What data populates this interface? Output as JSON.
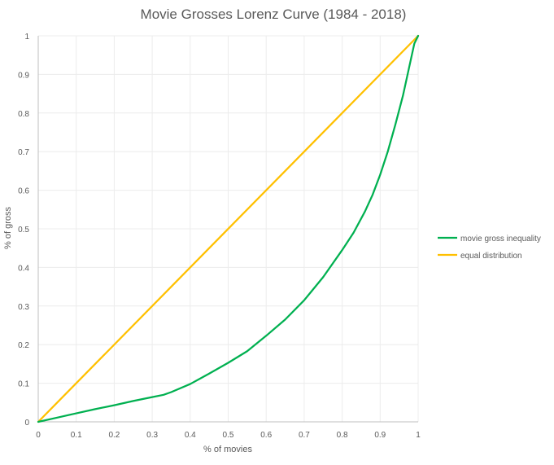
{
  "chart_data": {
    "type": "line",
    "title": "Movie Grosses Lorenz Curve (1984 - 2018)",
    "xlabel": "% of movies",
    "ylabel": "% of gross",
    "xlim": [
      0,
      1
    ],
    "ylim": [
      0,
      1
    ],
    "xticks": [
      "0",
      "0.1",
      "0.2",
      "0.3",
      "0.4",
      "0.5",
      "0.6",
      "0.7",
      "0.8",
      "0.9",
      "1"
    ],
    "yticks": [
      "0",
      "0.1",
      "0.2",
      "0.3",
      "0.4",
      "0.5",
      "0.6",
      "0.7",
      "0.8",
      "0.9",
      "1"
    ],
    "grid": true,
    "legend_position": "right",
    "series": [
      {
        "name": "movie gross inequality",
        "color": "#00b050",
        "x": [
          0,
          0.05,
          0.1,
          0.15,
          0.2,
          0.25,
          0.3,
          0.33,
          0.35,
          0.4,
          0.45,
          0.5,
          0.55,
          0.6,
          0.65,
          0.7,
          0.75,
          0.8,
          0.83,
          0.86,
          0.88,
          0.9,
          0.92,
          0.94,
          0.96,
          0.98,
          0.99,
          1.0
        ],
        "y": [
          0,
          0.011,
          0.022,
          0.033,
          0.043,
          0.054,
          0.064,
          0.07,
          0.077,
          0.098,
          0.125,
          0.153,
          0.183,
          0.223,
          0.265,
          0.315,
          0.375,
          0.445,
          0.49,
          0.545,
          0.588,
          0.64,
          0.7,
          0.77,
          0.845,
          0.935,
          0.98,
          1.0
        ]
      },
      {
        "name": "equal distribution",
        "color": "#ffc000",
        "x": [
          0,
          1
        ],
        "y": [
          0,
          1
        ]
      }
    ]
  }
}
